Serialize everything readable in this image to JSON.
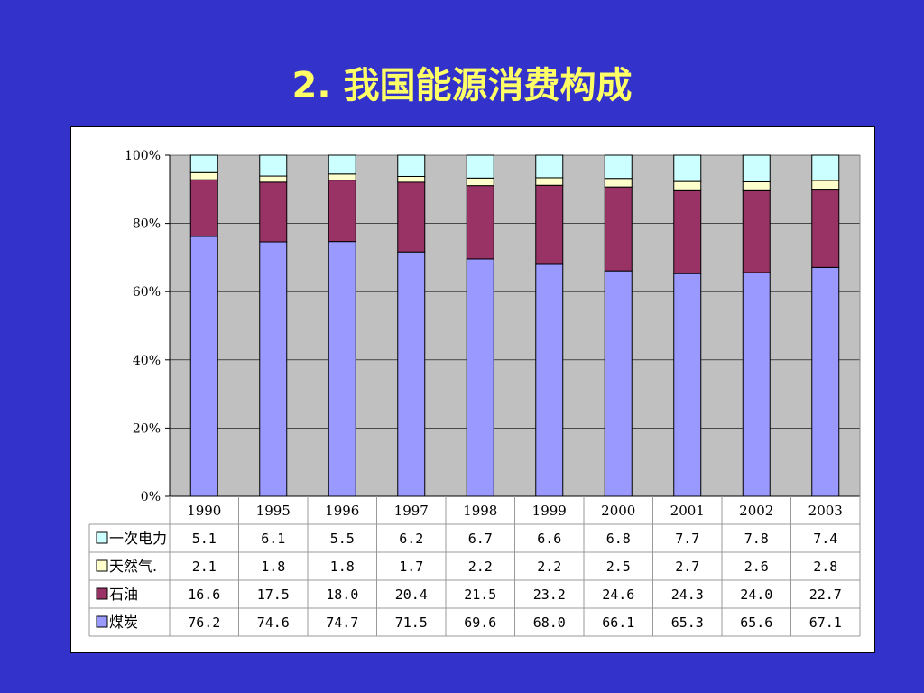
{
  "title": "2. 我国能源消费构成",
  "chart_data": {
    "type": "bar",
    "stacked": true,
    "percent_stacked": true,
    "categories": [
      "1990",
      "1995",
      "1996",
      "1997",
      "1998",
      "1999",
      "2000",
      "2001",
      "2002",
      "2003"
    ],
    "y_ticks": [
      "0%",
      "20%",
      "40%",
      "60%",
      "80%",
      "100%"
    ],
    "ylim": [
      0,
      100
    ],
    "grid": true,
    "legend": "data-table-left",
    "series": [
      {
        "name": "煤炭",
        "color": "#9999ff",
        "labels": [
          "76.2",
          "74.6",
          "74.7",
          "71.5",
          "69.6",
          "68.0",
          "66.1",
          "65.3",
          "65.6",
          "67.1"
        ],
        "values": [
          76.2,
          74.6,
          74.7,
          71.5,
          69.6,
          68.0,
          66.1,
          65.3,
          65.6,
          67.1
        ]
      },
      {
        "name": "石油",
        "color": "#993366",
        "labels": [
          "16.6",
          "17.5",
          "18.0",
          "20.4",
          "21.5",
          "23.2",
          "24.6",
          "24.3",
          "24.0",
          "22.7"
        ],
        "values": [
          16.6,
          17.5,
          18.0,
          20.4,
          21.5,
          23.2,
          24.6,
          24.3,
          24.0,
          22.7
        ]
      },
      {
        "name": "天然气.",
        "color": "#ffffcc",
        "labels": [
          "2.1",
          "1.8",
          "1.8",
          "1.7",
          "2.2",
          "2.2",
          "2.5",
          "2.7",
          "2.6",
          "2.8"
        ],
        "values": [
          2.1,
          1.8,
          1.8,
          1.7,
          2.2,
          2.2,
          2.5,
          2.7,
          2.6,
          2.8
        ]
      },
      {
        "name": "一次电力",
        "color": "#ccffff",
        "labels": [
          "5.1",
          "6.1",
          "5.5",
          "6.2",
          "6.7",
          "6.6",
          "6.8",
          "7.7",
          "7.8",
          "7.4"
        ],
        "values": [
          5.1,
          6.1,
          5.5,
          6.2,
          6.7,
          6.6,
          6.8,
          7.7,
          7.8,
          7.4
        ]
      }
    ],
    "table_order": [
      "一次电力",
      "天然气.",
      "石油",
      "煤炭"
    ],
    "plot_background": "#c0c0c0"
  }
}
